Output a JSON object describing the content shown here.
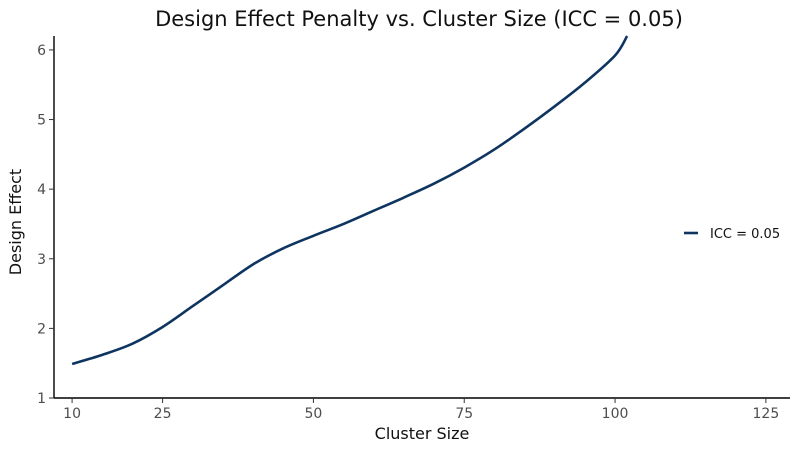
{
  "chart_data": {
    "type": "line",
    "title": "Design Effect Penalty vs. Cluster Size (ICC = 0.05)",
    "xlabel": "Cluster Size",
    "ylabel": "Design Effect",
    "xlim": [
      7,
      129
    ],
    "ylim": [
      1,
      6.2
    ],
    "xticks": [
      10,
      25,
      50,
      75,
      100,
      125
    ],
    "yticks": [
      1,
      2,
      3,
      4,
      5,
      6
    ],
    "grid": false,
    "legend_position": "right",
    "series": [
      {
        "name": "ICC = 0.05",
        "color": "#0e3460",
        "points": [
          [
            10,
            1.49
          ],
          [
            15,
            1.62
          ],
          [
            20,
            1.78
          ],
          [
            25,
            2.02
          ],
          [
            30,
            2.32
          ],
          [
            35,
            2.62
          ],
          [
            40,
            2.92
          ],
          [
            45,
            3.15
          ],
          [
            50,
            3.33
          ],
          [
            55,
            3.5
          ],
          [
            60,
            3.69
          ],
          [
            65,
            3.88
          ],
          [
            70,
            4.08
          ],
          [
            75,
            4.31
          ],
          [
            80,
            4.57
          ],
          [
            85,
            4.87
          ],
          [
            90,
            5.19
          ],
          [
            95,
            5.53
          ],
          [
            100,
            5.92
          ],
          [
            102,
            6.2
          ]
        ]
      }
    ]
  }
}
